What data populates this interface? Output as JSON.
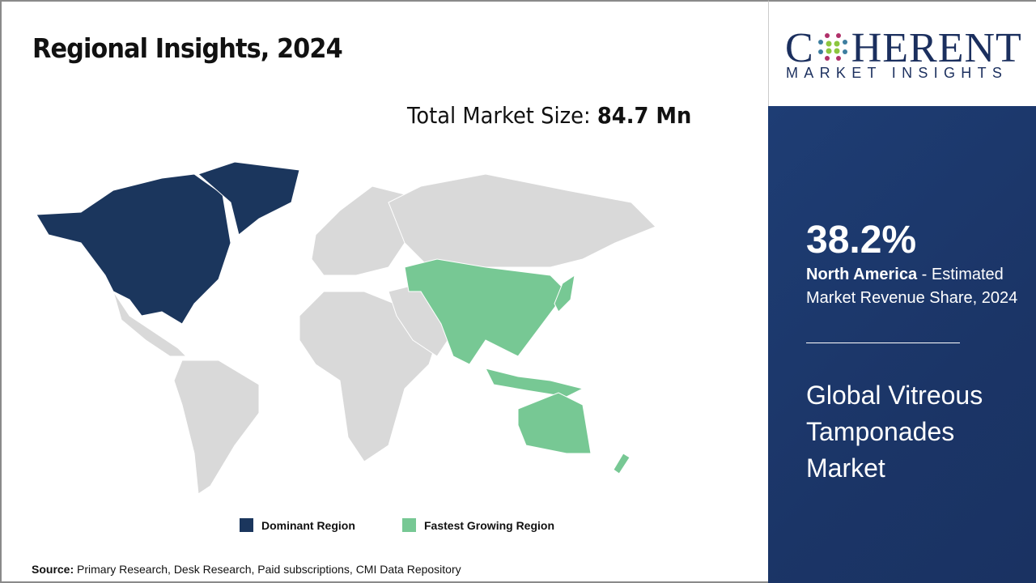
{
  "title": "Regional Insights, 2024",
  "total_label": "Total Market Size:",
  "total_value": "84.7 Mn",
  "legend": [
    {
      "label": "Dominant Region",
      "color": "#1b365d"
    },
    {
      "label": "Fastest Growing Region",
      "color": "#77c894"
    }
  ],
  "source_label": "Source:",
  "source_text": " Primary Research, Desk Research, Paid subscriptions, CMI Data Repository",
  "logo": {
    "big_c": "C",
    "big_rest": "HERENT",
    "small": "MARKET INSIGHTS"
  },
  "highlight": {
    "percent": "38.2%",
    "region": "North America",
    "desc": " - Estimated Market Revenue Share, 2024"
  },
  "market_name": "Global Vitreous Tamponades Market",
  "map": {
    "dominant": [
      "North America"
    ],
    "fastest_growing": [
      "Asia Pacific"
    ],
    "colors": {
      "other": "#d9d9d9",
      "dominant": "#1b365d",
      "fastest": "#77c894"
    }
  }
}
